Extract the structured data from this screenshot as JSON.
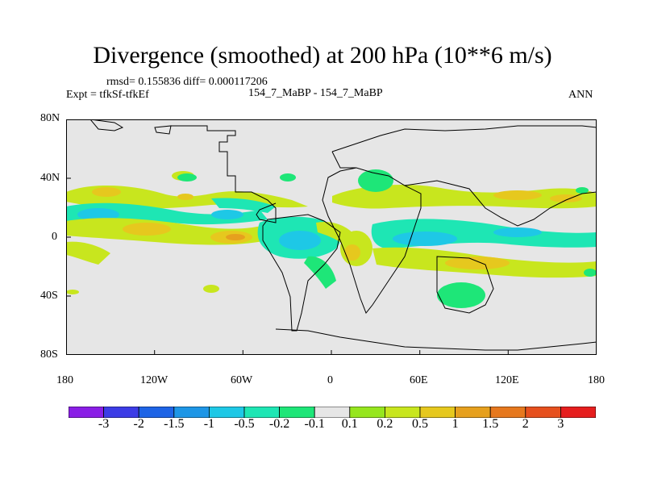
{
  "title": "Divergence (smoothed) at 200 hPa (10**6 m/s)",
  "stats": "rmsd= 0.155836 diff= 0.000117206",
  "experiment": "Expt = tfkSf-tfkEf",
  "case": "154_7_MaBP - 154_7_MaBP",
  "season": "ANN",
  "y_ticks": [
    "80N",
    "40N",
    "0",
    "40S",
    "80S"
  ],
  "x_ticks": [
    "180",
    "120W",
    "60W",
    "0",
    "60E",
    "120E",
    "180"
  ],
  "colorbar": {
    "colors": [
      "#8a1ee6",
      "#3c3ce6",
      "#1e64e6",
      "#1e96e6",
      "#1ec8e6",
      "#1ee6b4",
      "#1ee678",
      "#e6e6e6",
      "#96e61e",
      "#c8e61e",
      "#e6c81e",
      "#e6a01e",
      "#e6781e",
      "#e6501e",
      "#e61e1e"
    ],
    "labels": [
      "-3",
      "-2",
      "-1.5",
      "-1",
      "-0.5",
      "-0.2",
      "-0.1",
      "0.1",
      "0.2",
      "0.5",
      "1",
      "1.5",
      "2",
      "3"
    ]
  },
  "colors": {
    "background": "#e6e6e6",
    "yellow_green": "#c8e61e",
    "orange": "#e6c81e",
    "cyan": "#1ec8e6",
    "teal": "#1ee6b4",
    "green": "#1ee678"
  }
}
